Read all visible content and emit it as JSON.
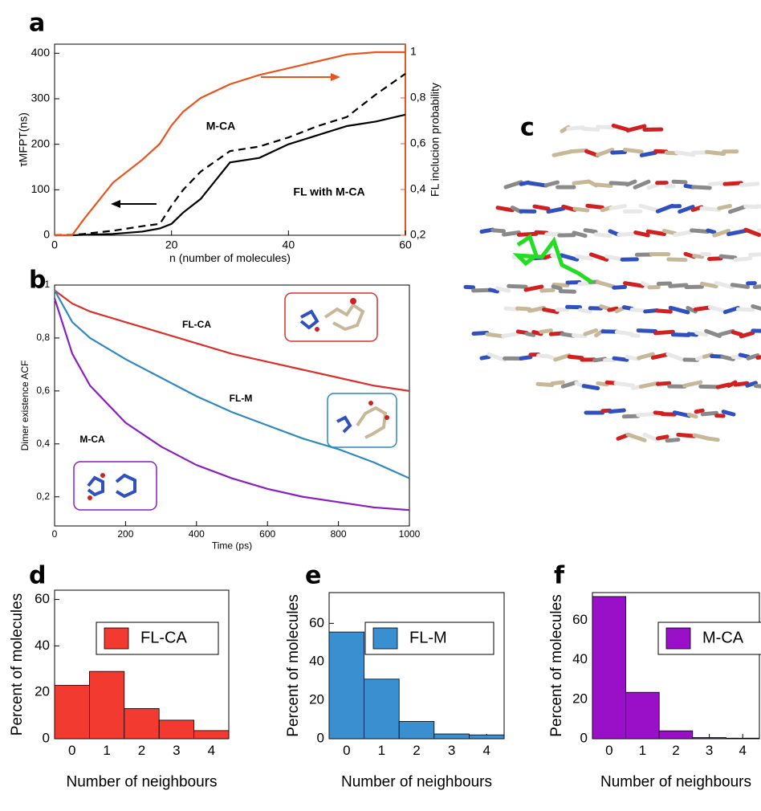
{
  "chart_data": [
    {
      "type": "line",
      "panel_label": "a",
      "xlabel": "n (number of molecules)",
      "ylabel": "τMFPT(ns)",
      "y2label": "FL inclucion probability",
      "x": [
        0,
        3,
        5,
        10,
        15,
        18,
        20,
        22,
        25,
        30,
        35,
        40,
        45,
        50,
        55,
        60
      ],
      "xlim": [
        0,
        60
      ],
      "xticks": [
        0,
        20,
        40,
        60
      ],
      "ylim": [
        0,
        420
      ],
      "yticks": [
        0,
        100,
        200,
        300,
        400
      ],
      "y2lim": [
        0.2,
        1.035
      ],
      "y2ticks": [
        {
          "value": 0.2,
          "label": "0,2"
        },
        {
          "value": 0.4,
          "label": "0,4"
        },
        {
          "value": 0.6,
          "label": "0,6"
        },
        {
          "value": 0.8,
          "label": "0,8"
        },
        1
      ],
      "series": [
        {
          "name": "FL with M-CA",
          "color": "#000000",
          "style": "solid",
          "values": [
            0,
            0,
            1,
            3,
            8,
            15,
            25,
            50,
            80,
            160,
            170,
            200,
            220,
            240,
            250,
            265
          ]
        },
        {
          "name": "M-CA",
          "color": "#000000",
          "style": "dashed",
          "values": [
            0,
            1,
            3,
            10,
            20,
            25,
            65,
            100,
            140,
            185,
            195,
            215,
            240,
            260,
            310,
            355
          ]
        },
        {
          "color": "#e8541e",
          "style": "solid",
          "axis": "y2",
          "values": [
            0.2,
            0.2,
            0.27,
            0.43,
            0.53,
            0.6,
            0.68,
            0.74,
            0.8,
            0.86,
            0.9,
            0.93,
            0.96,
            0.99,
            1,
            1
          ]
        }
      ]
    },
    {
      "type": "line",
      "panel_label": "b",
      "xlabel": "Time (ps)",
      "ylabel": "Dimer existence ACF",
      "x": [
        0,
        50,
        100,
        200,
        300,
        400,
        500,
        600,
        700,
        800,
        900,
        1000
      ],
      "xlim": [
        0,
        1000
      ],
      "xticks": [
        0,
        200,
        400,
        600,
        800,
        1000
      ],
      "ylim": [
        0.09,
        1
      ],
      "yticks": [
        {
          "value": 0.2,
          "label": "0,2"
        },
        {
          "value": 0.4,
          "label": "0,4"
        },
        {
          "value": 0.6,
          "label": "0,6"
        },
        {
          "value": 0.8,
          "label": "0,8"
        },
        1
      ],
      "series": [
        {
          "name": "FL-CA",
          "color": "#d9302c",
          "style": "solid",
          "values": [
            0.98,
            0.93,
            0.9,
            0.86,
            0.82,
            0.78,
            0.74,
            0.71,
            0.68,
            0.65,
            0.62,
            0.6
          ]
        },
        {
          "name": "FL-M",
          "color": "#2f88c0",
          "style": "solid",
          "values": [
            0.98,
            0.86,
            0.8,
            0.72,
            0.65,
            0.58,
            0.52,
            0.47,
            0.42,
            0.38,
            0.33,
            0.27
          ]
        },
        {
          "name": "M-CA",
          "color": "#8a1fc0",
          "style": "solid",
          "values": [
            0.95,
            0.74,
            0.62,
            0.48,
            0.39,
            0.32,
            0.27,
            0.23,
            0.2,
            0.18,
            0.16,
            0.15
          ]
        }
      ]
    },
    {
      "type": "histogram",
      "panel_label": "d",
      "xlabel": "Number of neighbours",
      "ylabel": "Percent of molecules",
      "bins": [
        -0.5,
        0.5,
        1.5,
        2.5,
        3.5,
        4.5
      ],
      "xlim": [
        -0.5,
        4.5
      ],
      "xticks": [
        0,
        1,
        2,
        3,
        4
      ],
      "ylim": [
        0,
        64
      ],
      "yticks": [
        0,
        20,
        40,
        60
      ],
      "series": [
        {
          "name": "FL-CA",
          "color": "#f23a30",
          "values": [
            23,
            29,
            13,
            8,
            3.5
          ]
        }
      ]
    },
    {
      "type": "histogram",
      "panel_label": "e",
      "xlabel": "Number of neighbours",
      "ylabel": "Percent of molecules",
      "bins": [
        -0.5,
        0.5,
        1.5,
        2.5,
        3.5,
        4.5
      ],
      "xlim": [
        -0.5,
        4.5
      ],
      "xticks": [
        0,
        1,
        2,
        3,
        4
      ],
      "ylim": [
        0,
        76
      ],
      "yticks": [
        0,
        20,
        40,
        60
      ],
      "series": [
        {
          "name": "FL-M",
          "color": "#3a8fd0",
          "values": [
            55.5,
            31,
            9,
            2.5,
            2
          ]
        }
      ]
    },
    {
      "type": "histogram",
      "panel_label": "f",
      "xlabel": "Number of neighbours",
      "ylabel": "Percent of molecules",
      "bins": [
        -0.5,
        0.5,
        1.5,
        2.5,
        3.5,
        4.5
      ],
      "xlim": [
        -0.5,
        4.5
      ],
      "xticks": [
        0,
        1,
        2,
        3,
        4
      ],
      "ylim": [
        0,
        74
      ],
      "yticks": [
        0,
        20,
        40,
        60
      ],
      "series": [
        {
          "name": "M-CA",
          "color": "#9a10c8",
          "values": [
            72,
            23.5,
            4,
            0.6,
            0.3
          ]
        }
      ]
    }
  ],
  "panel_c": {
    "label": "c"
  }
}
